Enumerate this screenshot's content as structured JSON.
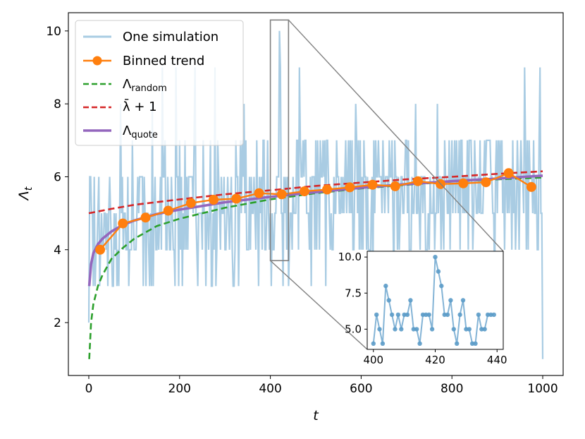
{
  "chart_data": {
    "type": "line",
    "title": "",
    "xlabel": "t",
    "ylabel": "Λt",
    "xlim": [
      -45,
      1045
    ],
    "ylim": [
      0.55,
      10.5
    ],
    "x_ticks": [
      0,
      200,
      400,
      600,
      800,
      1000
    ],
    "y_ticks": [
      2,
      4,
      6,
      8,
      10
    ],
    "legend": {
      "position": "upper-left",
      "entries": [
        {
          "label": "One simulation",
          "color": "#a9cce3",
          "style": "solid"
        },
        {
          "label": "Binned trend",
          "color": "#ff7f0e",
          "style": "line-marker"
        },
        {
          "label": "Λrandom",
          "color": "#2ca02c",
          "style": "dashed"
        },
        {
          "label": "λ̄ + 1",
          "color": "#d62728",
          "style": "dashed"
        },
        {
          "label": "Λquote",
          "color": "#9467bd",
          "style": "solid-thick"
        }
      ]
    },
    "series": [
      {
        "name": "One simulation",
        "color": "#a9cce3",
        "note": "noisy single-run trace of integer values 1-10 over t = 0..1000; values mostly fluctuate between 3 and 7 early and 5 and 7 later, reaching 10 near t=420 and dropping to 1 at t=1000",
        "x_sample": [
          0,
          20,
          40,
          60,
          80,
          100,
          120,
          140,
          160,
          180,
          200,
          220,
          240,
          260,
          280,
          300,
          320,
          340,
          360,
          380,
          400,
          420,
          440,
          460,
          480,
          500,
          520,
          540,
          560,
          580,
          600,
          620,
          640,
          660,
          680,
          700,
          720,
          740,
          760,
          780,
          800,
          820,
          840,
          860,
          880,
          900,
          920,
          940,
          960,
          980,
          1000
        ],
        "y_sample": [
          2,
          4,
          6,
          5,
          3,
          7,
          4,
          6,
          5,
          3,
          7,
          5,
          6,
          4,
          7,
          5,
          6,
          5,
          7,
          4,
          4,
          10,
          5,
          6,
          5,
          7,
          6,
          5,
          8,
          6,
          7,
          5,
          6,
          7,
          5,
          6,
          7,
          6,
          5,
          7,
          6,
          5,
          7,
          6,
          8,
          6,
          7,
          5,
          9,
          6,
          1
        ]
      },
      {
        "name": "Binned trend",
        "color": "#ff7f0e",
        "x": [
          25,
          75,
          125,
          175,
          225,
          275,
          325,
          375,
          425,
          475,
          525,
          575,
          625,
          675,
          725,
          775,
          825,
          875,
          925,
          975
        ],
        "values": [
          4.0,
          4.72,
          4.88,
          5.07,
          5.28,
          5.37,
          5.4,
          5.55,
          5.52,
          5.6,
          5.65,
          5.71,
          5.78,
          5.74,
          5.88,
          5.8,
          5.82,
          5.85,
          6.1,
          5.72
        ]
      },
      {
        "name": "Λrandom",
        "color": "#2ca02c",
        "dash": true,
        "x": [
          1,
          5,
          10,
          20,
          30,
          50,
          75,
          100,
          150,
          200,
          300,
          400,
          500,
          600,
          700,
          800,
          900,
          1000
        ],
        "values": [
          1.0,
          2.0,
          2.5,
          3.0,
          3.3,
          3.75,
          4.05,
          4.3,
          4.65,
          4.85,
          5.15,
          5.38,
          5.55,
          5.68,
          5.78,
          5.87,
          5.93,
          5.98
        ]
      },
      {
        "name": "λ̄ + 1",
        "color": "#d62728",
        "dash": true,
        "x": [
          0,
          50,
          100,
          200,
          300,
          400,
          500,
          600,
          700,
          800,
          900,
          1000
        ],
        "values": [
          5.0,
          5.12,
          5.23,
          5.38,
          5.52,
          5.63,
          5.75,
          5.84,
          5.93,
          6.0,
          6.08,
          6.15
        ]
      },
      {
        "name": "Λquote",
        "color": "#9467bd",
        "x": [
          1,
          5,
          10,
          20,
          30,
          50,
          75,
          100,
          150,
          200,
          300,
          400,
          500,
          600,
          700,
          800,
          900,
          1000
        ],
        "values": [
          3.0,
          3.6,
          3.9,
          4.15,
          4.3,
          4.5,
          4.68,
          4.8,
          4.98,
          5.1,
          5.3,
          5.45,
          5.58,
          5.7,
          5.8,
          5.88,
          5.95,
          6.03
        ]
      }
    ],
    "zoom_box": {
      "x_range": [
        400,
        440
      ],
      "y_range": [
        3.7,
        10.3
      ]
    },
    "inset": {
      "x_range": [
        398,
        442
      ],
      "y_range": [
        3.6,
        10.4
      ],
      "x_ticks": [
        400,
        420,
        440
      ],
      "y_ticks": [
        5.0,
        7.5,
        10.0
      ],
      "y_tick_labels": [
        "5.0",
        "7.5",
        "10.0"
      ],
      "color": "#5b9bc8",
      "x": [
        400,
        401,
        402,
        403,
        404,
        405,
        406,
        407,
        408,
        409,
        410,
        411,
        412,
        413,
        414,
        415,
        416,
        417,
        418,
        419,
        420,
        421,
        422,
        423,
        424,
        425,
        426,
        427,
        428,
        429,
        430,
        431,
        432,
        433,
        434,
        435,
        436,
        437,
        438,
        439
      ],
      "values": [
        4,
        6,
        5,
        4,
        8,
        7,
        6,
        5,
        6,
        5,
        6,
        6,
        7,
        5,
        5,
        4,
        6,
        6,
        6,
        5,
        10,
        9,
        8,
        6,
        6,
        7,
        5,
        4,
        6,
        7,
        5,
        5,
        4,
        4,
        6,
        5,
        5,
        6,
        6,
        6
      ]
    }
  }
}
